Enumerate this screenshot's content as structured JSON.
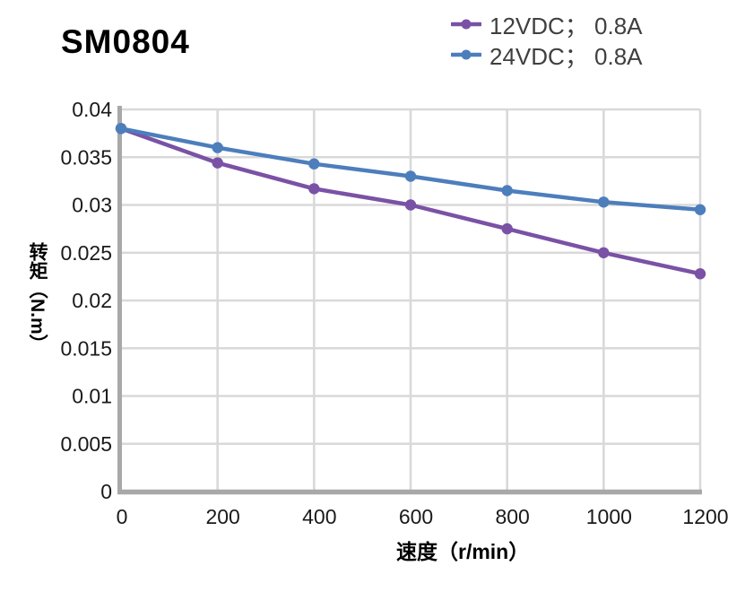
{
  "chart_data": {
    "type": "line",
    "title": "SM0804",
    "xlabel": "速度（r/min）",
    "ylabel": "转矩（N.m）",
    "x": [
      0,
      200,
      400,
      600,
      800,
      1000,
      1200
    ],
    "series": [
      {
        "name": "12VDC； 0.8A",
        "color": "#7A52A5",
        "values": [
          0.038,
          0.0344,
          0.0317,
          0.03,
          0.0275,
          0.025,
          0.0228
        ]
      },
      {
        "name": "24VDC； 0.8A",
        "color": "#4D7EBC",
        "values": [
          0.038,
          0.036,
          0.0343,
          0.033,
          0.0315,
          0.0303,
          0.0295
        ]
      }
    ],
    "xlim": [
      0,
      1200
    ],
    "ylim": [
      0,
      0.04
    ],
    "xtick_labels": [
      "0",
      "200",
      "400",
      "600",
      "800",
      "1000",
      "1200"
    ],
    "ytick_labels": [
      "0",
      "0.005",
      "0.01",
      "0.015",
      "0.02",
      "0.025",
      "0.03",
      "0.035",
      "0.04"
    ],
    "grid": true,
    "legend_position": "top-right",
    "colors": {
      "grid": "#D9D9D9",
      "axis": "#A8A8A8",
      "tick_text": "#1A1A1A",
      "legend_text": "#3F3F3F",
      "background": "#FFFFFF"
    }
  }
}
